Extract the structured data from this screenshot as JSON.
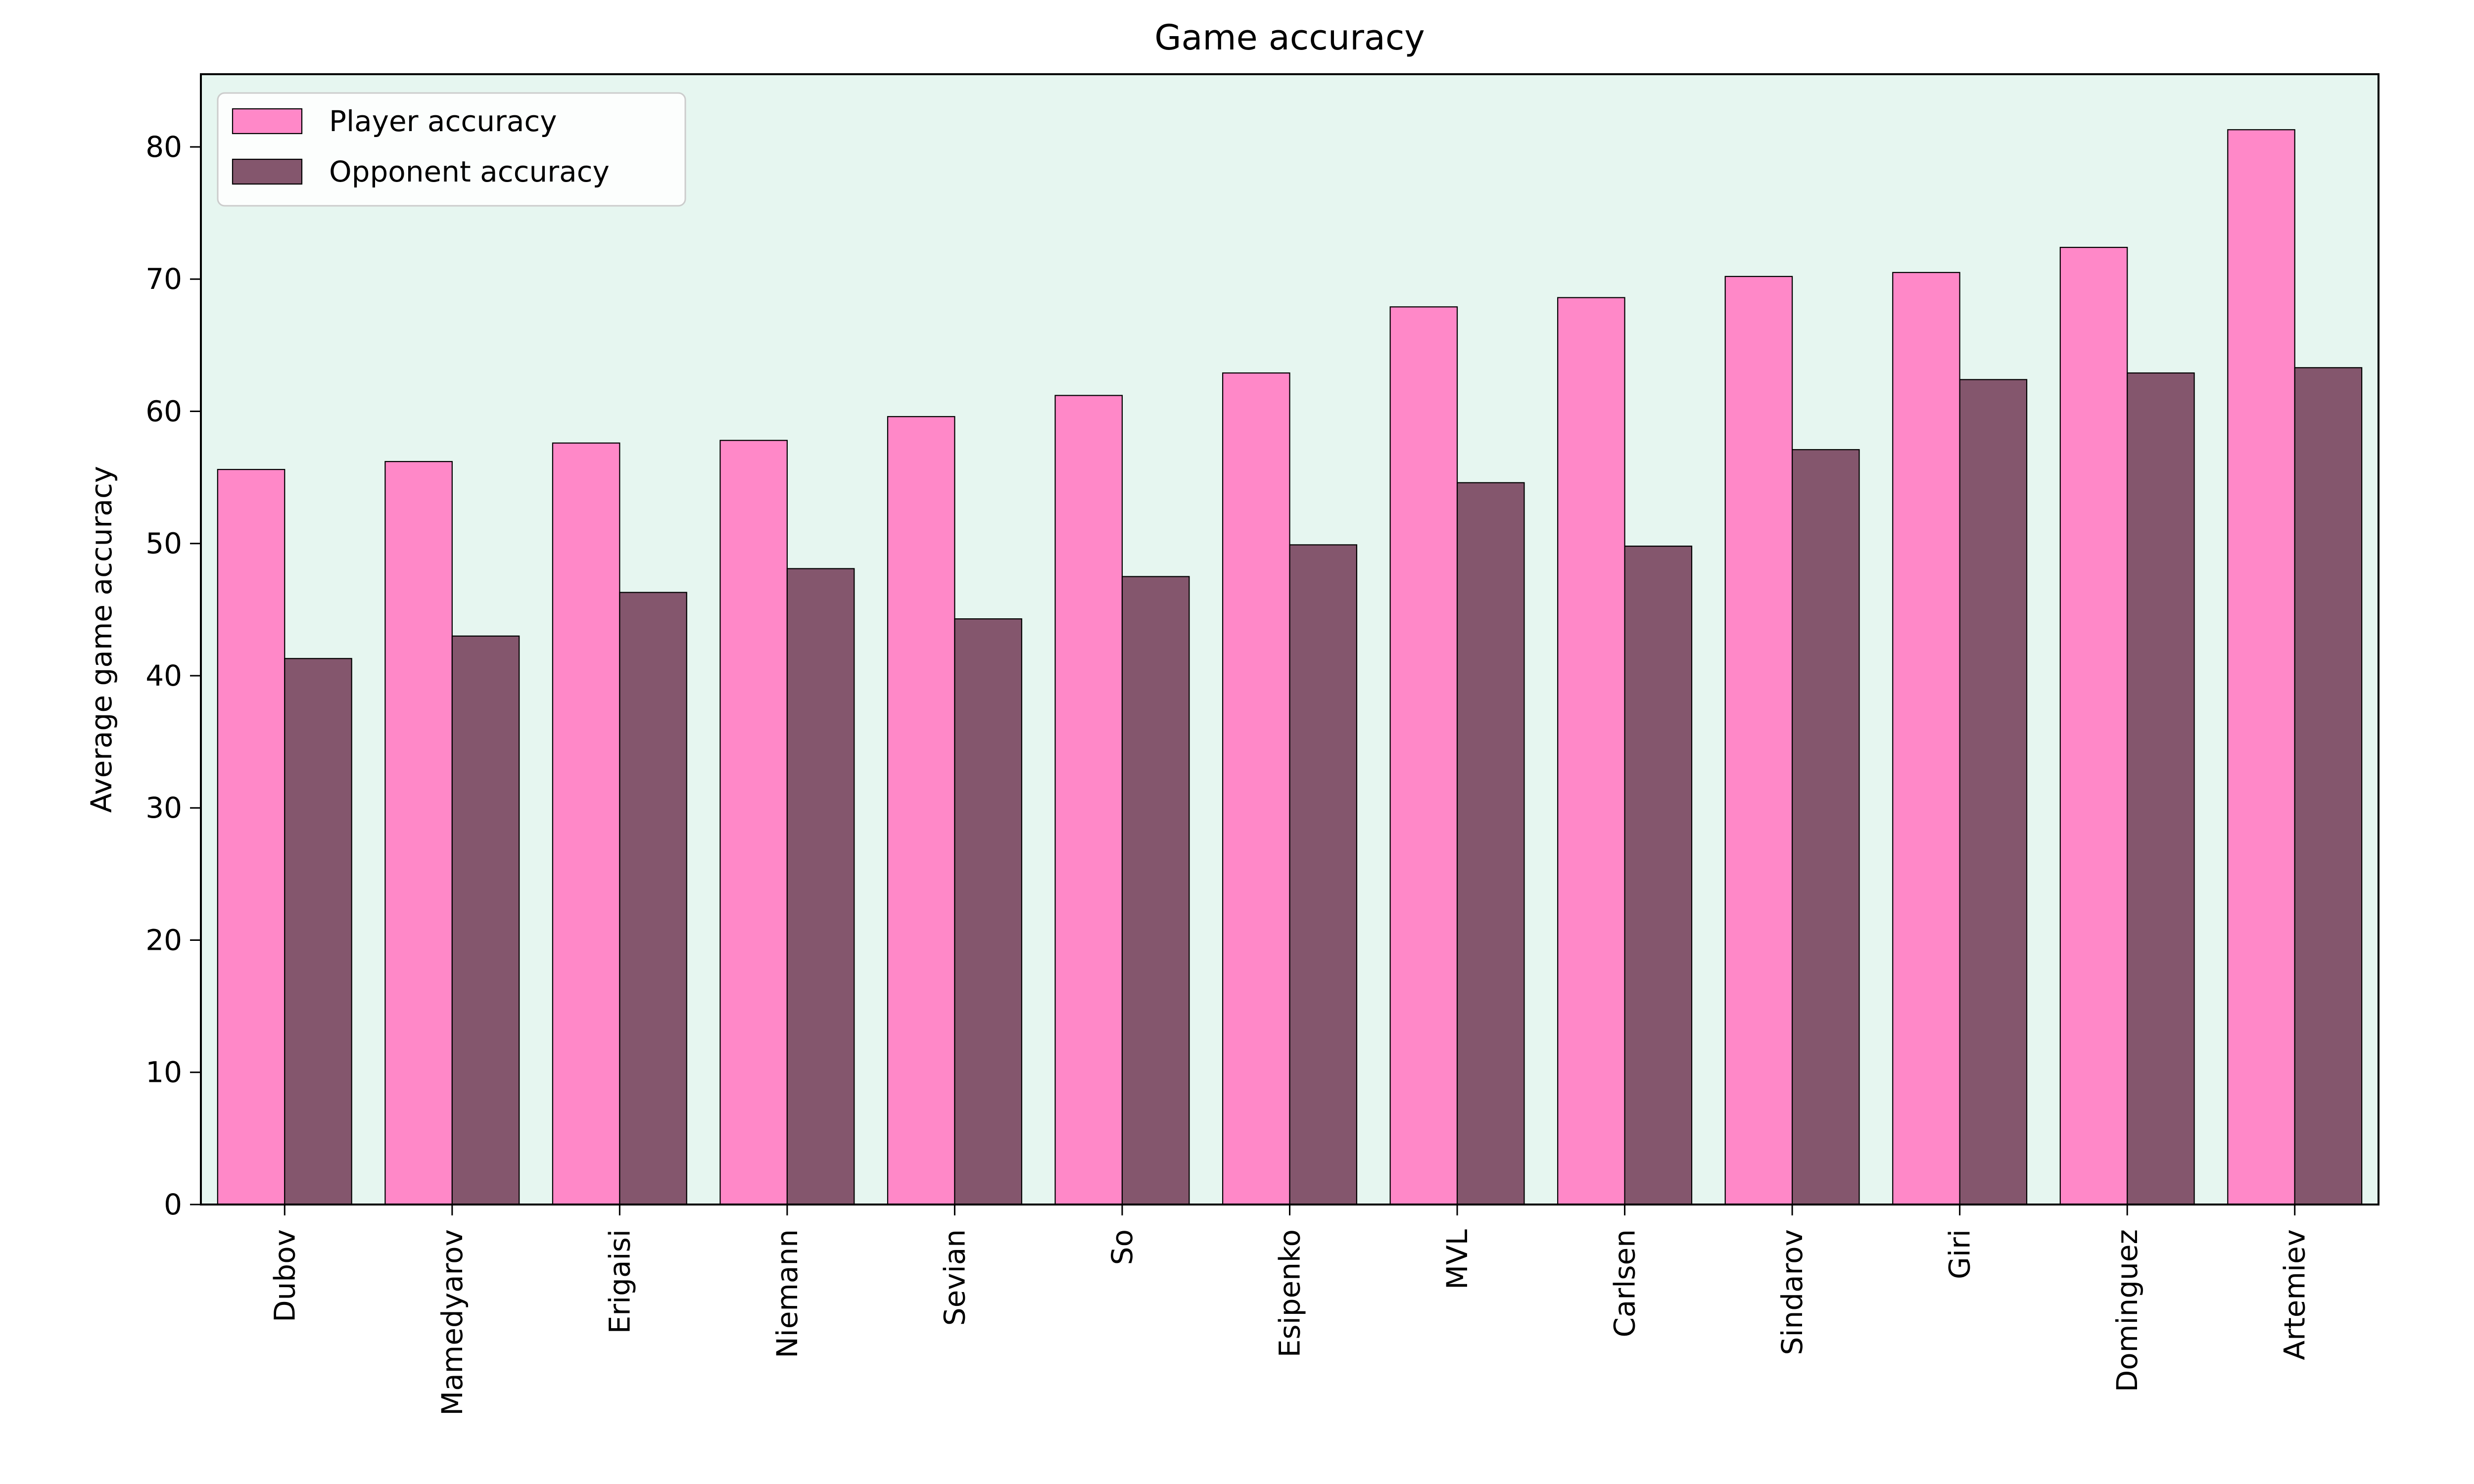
{
  "chart_data": {
    "type": "bar",
    "title": "Game accuracy",
    "xlabel": "",
    "ylabel": "Average game accuracy",
    "ylim": [
      0,
      85.5
    ],
    "yticks": [
      0,
      10,
      20,
      30,
      40,
      50,
      60,
      70,
      80
    ],
    "grid": false,
    "legend_position": "top-left",
    "background_color": "#e6f6f0",
    "categories": [
      "Dubov",
      "Mamedyarov",
      "Erigaisi",
      "Niemann",
      "Sevian",
      "So",
      "Esipenko",
      "MVL",
      "Carlsen",
      "Sindarov",
      "Giri",
      "Dominguez",
      "Artemiev"
    ],
    "series": [
      {
        "name": "Player accuracy",
        "color": "#ff88c8",
        "values": [
          55.6,
          56.2,
          57.6,
          57.8,
          59.6,
          61.2,
          62.9,
          67.9,
          68.6,
          70.2,
          70.5,
          72.4,
          81.3
        ]
      },
      {
        "name": "Opponent accuracy",
        "color": "#84566d",
        "values": [
          41.3,
          43.0,
          46.3,
          48.1,
          44.3,
          47.5,
          49.9,
          54.6,
          49.8,
          57.1,
          62.4,
          62.9,
          63.3
        ]
      }
    ]
  }
}
